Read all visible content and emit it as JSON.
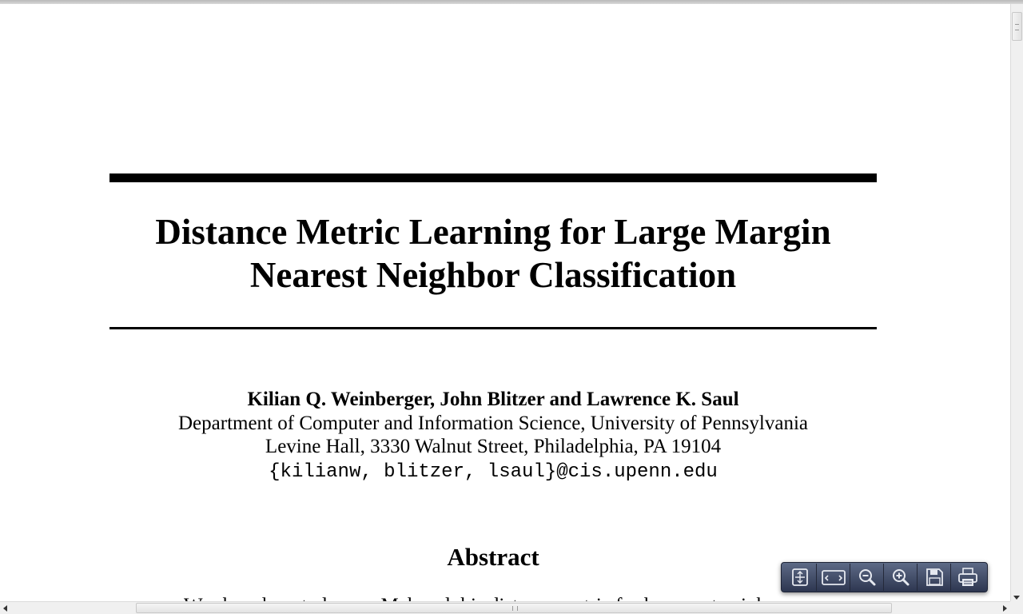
{
  "paper": {
    "title_line1": "Distance Metric Learning for Large Margin",
    "title_line2": "Nearest Neighbor Classification",
    "authors": "Kilian Q. Weinberger, John Blitzer and Lawrence K. Saul",
    "affiliation": "Department of Computer and Information Science, University of Pennsylvania",
    "address": "Levine Hall, 3330 Walnut Street, Philadelphia, PA 19104",
    "email_users": "{kilianw, blitzer, lsaul}",
    "email_domain": "@cis.upenn.edu",
    "abstract_heading": "Abstract",
    "abstract_first_line": "We show how to learn a Mahanalobis distance metric for k-nearest neigh-"
  },
  "toolbar": {
    "buttons": [
      {
        "name": "fit-page-icon"
      },
      {
        "name": "fit-width-icon"
      },
      {
        "name": "zoom-out-icon"
      },
      {
        "name": "zoom-in-icon"
      },
      {
        "name": "save-icon"
      },
      {
        "name": "print-icon"
      }
    ]
  },
  "colors": {
    "toolbar_top": "#5d6a86",
    "toolbar_bottom": "#2d3650",
    "icon": "#e6e9f0"
  }
}
